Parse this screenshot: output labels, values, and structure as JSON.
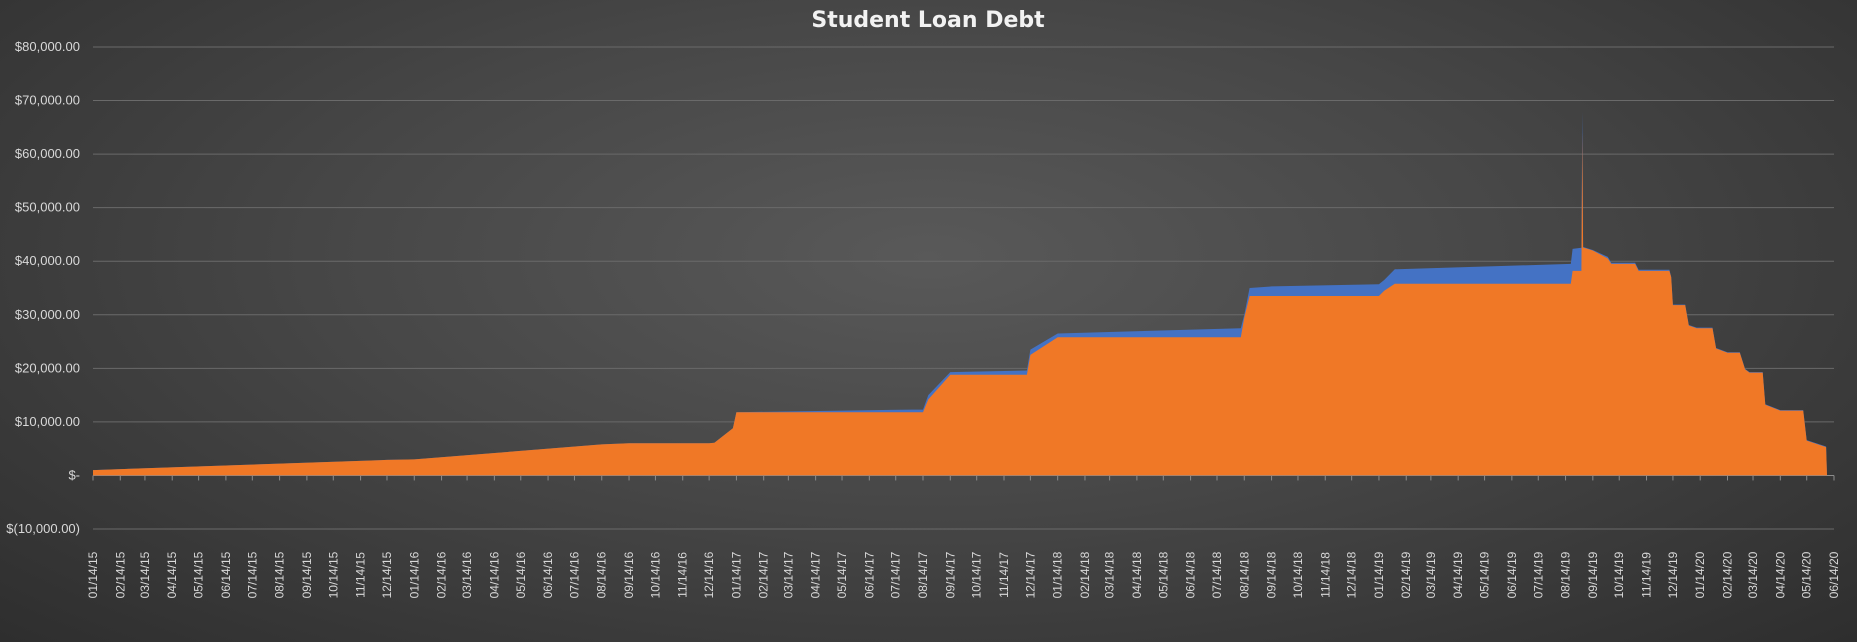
{
  "chart_data": {
    "type": "area",
    "title": "Student Loan Debt",
    "xlabel": "",
    "ylabel": "",
    "ylim": [
      -10000,
      80000
    ],
    "yticks": [
      80000,
      70000,
      60000,
      50000,
      40000,
      30000,
      20000,
      10000,
      0,
      -10000
    ],
    "ytick_labels": [
      "$80,000.00",
      "$70,000.00",
      "$60,000.00",
      "$50,000.00",
      "$40,000.00",
      "$30,000.00",
      "$20,000.00",
      "$10,000.00",
      "$-",
      "$(10,000.00)"
    ],
    "x_tick_labels": [
      "01/14/15",
      "02/14/15",
      "03/14/15",
      "04/14/15",
      "05/14/15",
      "06/14/15",
      "07/14/15",
      "08/14/15",
      "09/14/15",
      "10/14/15",
      "11/14/15",
      "12/14/15",
      "01/14/16",
      "02/14/16",
      "03/14/16",
      "04/14/16",
      "05/14/16",
      "06/14/16",
      "07/14/16",
      "08/14/16",
      "09/14/16",
      "10/14/16",
      "11/14/16",
      "12/14/16",
      "01/14/17",
      "02/14/17",
      "03/14/17",
      "04/14/17",
      "05/14/17",
      "06/14/17",
      "07/14/17",
      "08/14/17",
      "09/14/17",
      "10/14/17",
      "11/14/17",
      "12/14/17",
      "01/14/18",
      "02/14/18",
      "03/14/18",
      "04/14/18",
      "05/14/18",
      "06/14/18",
      "07/14/18",
      "08/14/18",
      "09/14/18",
      "10/14/18",
      "11/14/18",
      "12/14/18",
      "01/14/19",
      "02/14/19",
      "03/14/19",
      "04/14/19",
      "05/14/19",
      "06/14/19",
      "07/14/19",
      "08/14/19",
      "09/14/19",
      "10/14/19",
      "11/14/19",
      "12/14/19",
      "01/14/20",
      "02/14/20",
      "03/14/20",
      "04/14/20",
      "05/14/20",
      "06/14/20"
    ],
    "grid": true,
    "colors": {
      "series1": "#f07826",
      "series2": "#4472c4"
    },
    "series": [
      {
        "x": [
          "01/14/15",
          "12/14/15",
          "01/14/16",
          "08/14/16",
          "09/14/16",
          "12/14/16",
          "12/20/16",
          "01/10/17",
          "01/14/17",
          "08/01/17",
          "08/14/17",
          "08/20/17",
          "09/14/17",
          "11/14/17",
          "12/10/17",
          "12/14/17",
          "01/14/18",
          "08/10/18",
          "08/14/18",
          "08/20/18",
          "09/14/18",
          "01/14/19",
          "01/20/19",
          "02/01/19",
          "08/20/19",
          "08/22/19",
          "09/01/19",
          "09/02/19",
          "09/03/19",
          "09/04/19",
          "09/14/19",
          "10/01/19",
          "10/05/19",
          "11/01/19",
          "11/05/19",
          "12/10/19",
          "12/12/19",
          "12/14/19",
          "12/28/19",
          "01/01/20",
          "01/10/20",
          "01/28/20",
          "02/01/20",
          "02/14/20",
          "02/28/20",
          "03/05/20",
          "03/10/20",
          "03/14/20",
          "03/25/20",
          "03/28/20",
          "04/14/20",
          "05/10/20",
          "05/14/20",
          "06/05/20",
          "06/06/20"
        ],
        "values": [
          1000,
          2900,
          3000,
          5800,
          6000,
          6000,
          6100,
          8800,
          11800,
          11800,
          11800,
          14200,
          18800,
          18800,
          18800,
          22500,
          25800,
          25800,
          29500,
          33500,
          33500,
          33500,
          34500,
          35800,
          35800,
          38200,
          38200,
          64000,
          42500,
          42500,
          42000,
          40500,
          39500,
          39500,
          38200,
          38200,
          37000,
          31800,
          31800,
          28000,
          27500,
          27500,
          23700,
          22900,
          22900,
          19800,
          19200,
          19200,
          19200,
          13200,
          12100,
          12100,
          6500,
          5300,
          0
        ]
      },
      {
        "x": [
          "01/14/15",
          "12/14/15",
          "01/14/16",
          "08/14/16",
          "09/14/16",
          "12/14/16",
          "12/20/16",
          "01/10/17",
          "01/14/17",
          "08/01/17",
          "08/14/17",
          "08/20/17",
          "09/14/17",
          "11/14/17",
          "12/10/17",
          "12/14/17",
          "01/14/18",
          "08/10/18",
          "08/14/18",
          "08/20/18",
          "09/14/18",
          "01/14/19",
          "01/20/19",
          "02/01/19",
          "08/20/19",
          "08/22/19",
          "09/01/19",
          "09/02/19",
          "09/03/19",
          "09/04/19",
          "09/14/19",
          "10/01/19",
          "10/05/19",
          "11/01/19",
          "11/05/19",
          "12/10/19",
          "12/12/19",
          "12/14/19",
          "12/28/19",
          "01/01/20",
          "01/10/20",
          "01/28/20",
          "02/01/20",
          "02/14/20",
          "02/28/20",
          "03/05/20",
          "03/10/20",
          "03/14/20",
          "03/25/20",
          "03/28/20",
          "04/14/20",
          "05/10/20",
          "05/14/20",
          "06/05/20",
          "06/06/20"
        ],
        "values": [
          1000,
          2900,
          3000,
          5800,
          6000,
          6000,
          6100,
          8800,
          11800,
          12300,
          12300,
          15000,
          19300,
          19500,
          19600,
          23500,
          26500,
          27500,
          30000,
          35000,
          35300,
          35700,
          36500,
          38500,
          39500,
          42300,
          42500,
          68000,
          42700,
          42600,
          42100,
          40800,
          39700,
          39700,
          38400,
          38400,
          37100,
          31900,
          31900,
          28100,
          27600,
          27600,
          23800,
          23000,
          23000,
          19900,
          19300,
          19300,
          19300,
          13300,
          12200,
          12200,
          6600,
          5400,
          0
        ]
      }
    ]
  }
}
